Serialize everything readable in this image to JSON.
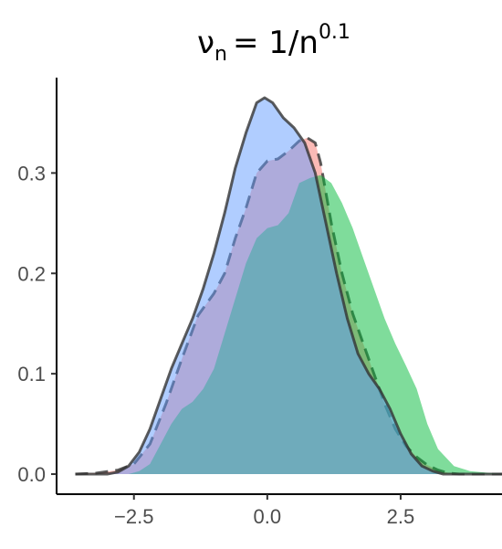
{
  "chart_data": {
    "type": "area",
    "title": {
      "symbol": "ν",
      "subscript": "n",
      "equals": "= 1/n",
      "exponent": "0.1"
    },
    "xlabel": "",
    "ylabel": "",
    "xlim": [
      -3.95,
      4.4
    ],
    "ylim": [
      -0.02,
      0.395
    ],
    "x_ticks": [
      -2.5,
      0.0,
      2.5
    ],
    "x_tick_labels": [
      "−2.5",
      "0.0",
      "2.5"
    ],
    "y_ticks": [
      0.0,
      0.1,
      0.2,
      0.3
    ],
    "y_tick_labels": [
      "0.0",
      "0.1",
      "0.2",
      "0.3"
    ],
    "grid": false,
    "legend": "none",
    "series": [
      {
        "fill": "#f8766d",
        "fill_opacity": 0.5,
        "line_style": "dashed",
        "points": [
          [
            -3.6,
            0.0
          ],
          [
            -3.2,
            0.001
          ],
          [
            -2.8,
            0.004
          ],
          [
            -2.5,
            0.01
          ],
          [
            -2.2,
            0.03
          ],
          [
            -1.9,
            0.07
          ],
          [
            -1.6,
            0.115
          ],
          [
            -1.3,
            0.158
          ],
          [
            -1.0,
            0.18
          ],
          [
            -0.8,
            0.2
          ],
          [
            -0.6,
            0.235
          ],
          [
            -0.4,
            0.265
          ],
          [
            -0.2,
            0.3
          ],
          [
            0.0,
            0.312
          ],
          [
            0.2,
            0.314
          ],
          [
            0.4,
            0.322
          ],
          [
            0.6,
            0.332
          ],
          [
            0.75,
            0.335
          ],
          [
            0.9,
            0.33
          ],
          [
            1.0,
            0.31
          ],
          [
            1.2,
            0.25
          ],
          [
            1.4,
            0.2
          ],
          [
            1.6,
            0.16
          ],
          [
            1.8,
            0.13
          ],
          [
            2.0,
            0.1
          ],
          [
            2.2,
            0.07
          ],
          [
            2.4,
            0.045
          ],
          [
            2.6,
            0.028
          ],
          [
            2.8,
            0.017
          ],
          [
            3.0,
            0.009
          ],
          [
            3.2,
            0.004
          ],
          [
            3.4,
            0.001
          ],
          [
            3.6,
            0.0
          ],
          [
            4.4,
            0.0
          ]
        ]
      },
      {
        "fill": "#00ba38",
        "fill_opacity": 0.5,
        "line_style": "none",
        "points": [
          [
            -3.2,
            0.0
          ],
          [
            -2.6,
            0.0
          ],
          [
            -2.4,
            0.003
          ],
          [
            -2.2,
            0.01
          ],
          [
            -2.0,
            0.03
          ],
          [
            -1.8,
            0.05
          ],
          [
            -1.6,
            0.065
          ],
          [
            -1.4,
            0.072
          ],
          [
            -1.2,
            0.085
          ],
          [
            -1.0,
            0.105
          ],
          [
            -0.8,
            0.14
          ],
          [
            -0.6,
            0.175
          ],
          [
            -0.4,
            0.21
          ],
          [
            -0.2,
            0.235
          ],
          [
            0.0,
            0.245
          ],
          [
            0.2,
            0.248
          ],
          [
            0.4,
            0.26
          ],
          [
            0.6,
            0.29
          ],
          [
            0.8,
            0.295
          ],
          [
            1.0,
            0.298
          ],
          [
            1.2,
            0.29
          ],
          [
            1.4,
            0.27
          ],
          [
            1.6,
            0.245
          ],
          [
            1.8,
            0.215
          ],
          [
            2.0,
            0.185
          ],
          [
            2.2,
            0.155
          ],
          [
            2.4,
            0.13
          ],
          [
            2.6,
            0.108
          ],
          [
            2.8,
            0.085
          ],
          [
            3.0,
            0.05
          ],
          [
            3.2,
            0.025
          ],
          [
            3.5,
            0.008
          ],
          [
            3.8,
            0.003
          ],
          [
            4.2,
            0.001
          ],
          [
            4.4,
            0.0
          ]
        ]
      },
      {
        "fill": "#619cff",
        "fill_opacity": 0.5,
        "line_style": "solid",
        "points": [
          [
            -3.6,
            0.0
          ],
          [
            -3.0,
            0.0
          ],
          [
            -2.8,
            0.002
          ],
          [
            -2.6,
            0.008
          ],
          [
            -2.4,
            0.022
          ],
          [
            -2.2,
            0.045
          ],
          [
            -2.0,
            0.075
          ],
          [
            -1.8,
            0.105
          ],
          [
            -1.6,
            0.13
          ],
          [
            -1.4,
            0.155
          ],
          [
            -1.2,
            0.185
          ],
          [
            -1.0,
            0.22
          ],
          [
            -0.8,
            0.26
          ],
          [
            -0.6,
            0.305
          ],
          [
            -0.4,
            0.34
          ],
          [
            -0.2,
            0.37
          ],
          [
            -0.05,
            0.375
          ],
          [
            0.1,
            0.37
          ],
          [
            0.3,
            0.355
          ],
          [
            0.5,
            0.345
          ],
          [
            0.7,
            0.33
          ],
          [
            0.9,
            0.3
          ],
          [
            1.1,
            0.25
          ],
          [
            1.3,
            0.2
          ],
          [
            1.5,
            0.155
          ],
          [
            1.7,
            0.12
          ],
          [
            1.9,
            0.1
          ],
          [
            2.1,
            0.085
          ],
          [
            2.3,
            0.065
          ],
          [
            2.5,
            0.04
          ],
          [
            2.7,
            0.02
          ],
          [
            2.9,
            0.008
          ],
          [
            3.1,
            0.003
          ],
          [
            3.3,
            0.0
          ],
          [
            4.4,
            0.0
          ]
        ]
      }
    ]
  }
}
